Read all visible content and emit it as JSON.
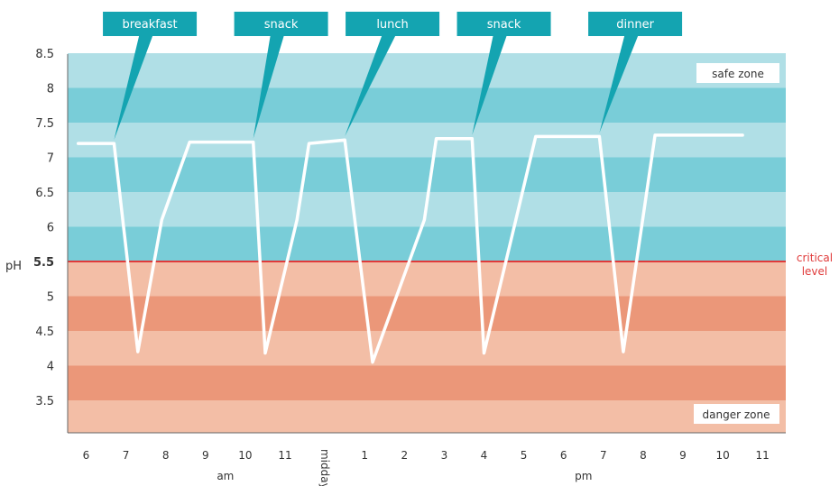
{
  "chart_data": {
    "type": "line",
    "ylabel": "pH",
    "ylim": [
      3.0,
      8.5
    ],
    "yticks": [
      "3.5",
      "4",
      "4.5",
      "5",
      "5.5",
      "6",
      "6.5",
      "7",
      "7.5",
      "8",
      "8.5"
    ],
    "xticks": [
      "6",
      "7",
      "8",
      "9",
      "10",
      "11",
      "midday",
      "1",
      "2",
      "3",
      "4",
      "5",
      "6",
      "7",
      "8",
      "9",
      "10",
      "11"
    ],
    "xgroups": [
      {
        "label": "am",
        "center": 9.5
      },
      {
        "label": "pm",
        "center": 18.5
      }
    ],
    "critical": {
      "value": 5.5,
      "label_line1": "critical",
      "label_line2": "level",
      "color": "#e03a3a"
    },
    "zones": {
      "safe": {
        "label": "safe zone",
        "colors": [
          "#b0dfe6",
          "#79cdd8"
        ]
      },
      "danger": {
        "label": "danger zone",
        "colors": [
          "#f3bea6",
          "#eb9779"
        ]
      }
    },
    "series": [
      {
        "color": "#ffffff",
        "points": [
          [
            5.8,
            7.2
          ],
          [
            6.7,
            7.2
          ],
          [
            7.3,
            4.2
          ],
          [
            7.9,
            6.1
          ],
          [
            8.6,
            7.22
          ],
          [
            9.2,
            7.22
          ],
          [
            10.2,
            7.22
          ],
          [
            10.5,
            4.18
          ],
          [
            11.3,
            6.1
          ],
          [
            11.6,
            7.2
          ],
          [
            12.5,
            7.25
          ],
          [
            13.2,
            4.05
          ],
          [
            14.5,
            6.1
          ],
          [
            14.8,
            7.27
          ],
          [
            15.7,
            7.27
          ],
          [
            16.0,
            4.18
          ],
          [
            16.8,
            6.1
          ],
          [
            17.3,
            7.3
          ],
          [
            18.9,
            7.3
          ],
          [
            19.5,
            4.2
          ],
          [
            20.3,
            7.32
          ],
          [
            22.5,
            7.32
          ]
        ]
      }
    ],
    "annotations": [
      {
        "label": "breakfast",
        "x": 6.7,
        "y": 7.2,
        "box_center": 7.6
      },
      {
        "label": "snack",
        "x": 10.2,
        "y": 7.22,
        "box_center": 10.9
      },
      {
        "label": "lunch",
        "x": 12.5,
        "y": 7.25,
        "box_center": 13.7
      },
      {
        "label": "snack",
        "x": 15.7,
        "y": 7.27,
        "box_center": 16.5
      },
      {
        "label": "dinner",
        "x": 18.9,
        "y": 7.3,
        "box_center": 19.8
      }
    ],
    "callout_color": "#14a4b1"
  }
}
